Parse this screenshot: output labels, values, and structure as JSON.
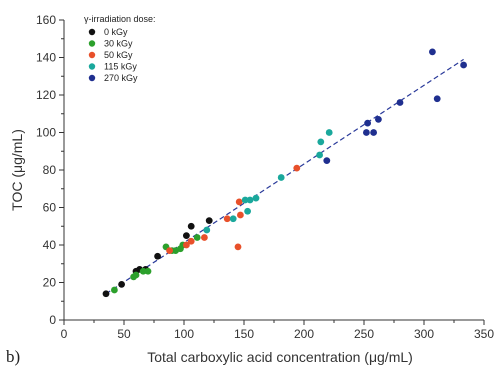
{
  "panel_label": "b)",
  "chart_data": {
    "type": "scatter",
    "title": "",
    "xlabel": "Total carboxylic acid concentration (μg/mL)",
    "ylabel": "TOC (μg/mL)",
    "xlim": [
      0,
      350
    ],
    "ylim": [
      0,
      160
    ],
    "xticks": [
      0,
      50,
      100,
      150,
      200,
      250,
      300,
      350
    ],
    "yticks": [
      0,
      20,
      40,
      60,
      80,
      100,
      120,
      140,
      160
    ],
    "grid": false,
    "legend": {
      "title": "γ-irradiation dose:",
      "placement": "top-left"
    },
    "series": [
      {
        "name": "0 kGy",
        "color": "#111111",
        "points": [
          [
            35,
            14
          ],
          [
            48,
            19
          ],
          [
            60,
            26
          ],
          [
            63,
            27
          ],
          [
            68,
            27
          ],
          [
            78,
            34
          ],
          [
            102,
            45
          ],
          [
            106,
            50
          ],
          [
            121,
            53
          ]
        ]
      },
      {
        "name": "30 kGy",
        "color": "#2ca02c",
        "points": [
          [
            42,
            16
          ],
          [
            58,
            23
          ],
          [
            60,
            24
          ],
          [
            66,
            26
          ],
          [
            70,
            26
          ],
          [
            85,
            39
          ],
          [
            90,
            37
          ],
          [
            93,
            37
          ],
          [
            97,
            38
          ],
          [
            99,
            40
          ],
          [
            111,
            44
          ]
        ]
      },
      {
        "name": "50 kGy",
        "color": "#e8502a",
        "points": [
          [
            88,
            37
          ],
          [
            102,
            40
          ],
          [
            106,
            42
          ],
          [
            117,
            44
          ],
          [
            136,
            54
          ],
          [
            145,
            39
          ],
          [
            146,
            63
          ],
          [
            147,
            56
          ],
          [
            194,
            81
          ]
        ]
      },
      {
        "name": "115 kGy",
        "color": "#1aa89c",
        "points": [
          [
            119,
            48
          ],
          [
            141,
            54
          ],
          [
            151,
            64
          ],
          [
            153,
            58
          ],
          [
            155,
            64
          ],
          [
            160,
            65
          ],
          [
            181,
            76
          ],
          [
            213,
            88
          ],
          [
            214,
            95
          ],
          [
            221,
            100
          ]
        ]
      },
      {
        "name": "270 kGy",
        "color": "#1f2f8f",
        "points": [
          [
            219,
            85
          ],
          [
            252,
            100
          ],
          [
            253,
            105
          ],
          [
            258,
            100
          ],
          [
            262,
            107
          ],
          [
            280,
            116
          ],
          [
            307,
            143
          ],
          [
            311,
            118
          ],
          [
            333,
            136
          ]
        ]
      }
    ],
    "fit_line": {
      "x": [
        35,
        333
      ],
      "y": [
        14,
        139
      ],
      "color": "#2a3a9a"
    }
  }
}
